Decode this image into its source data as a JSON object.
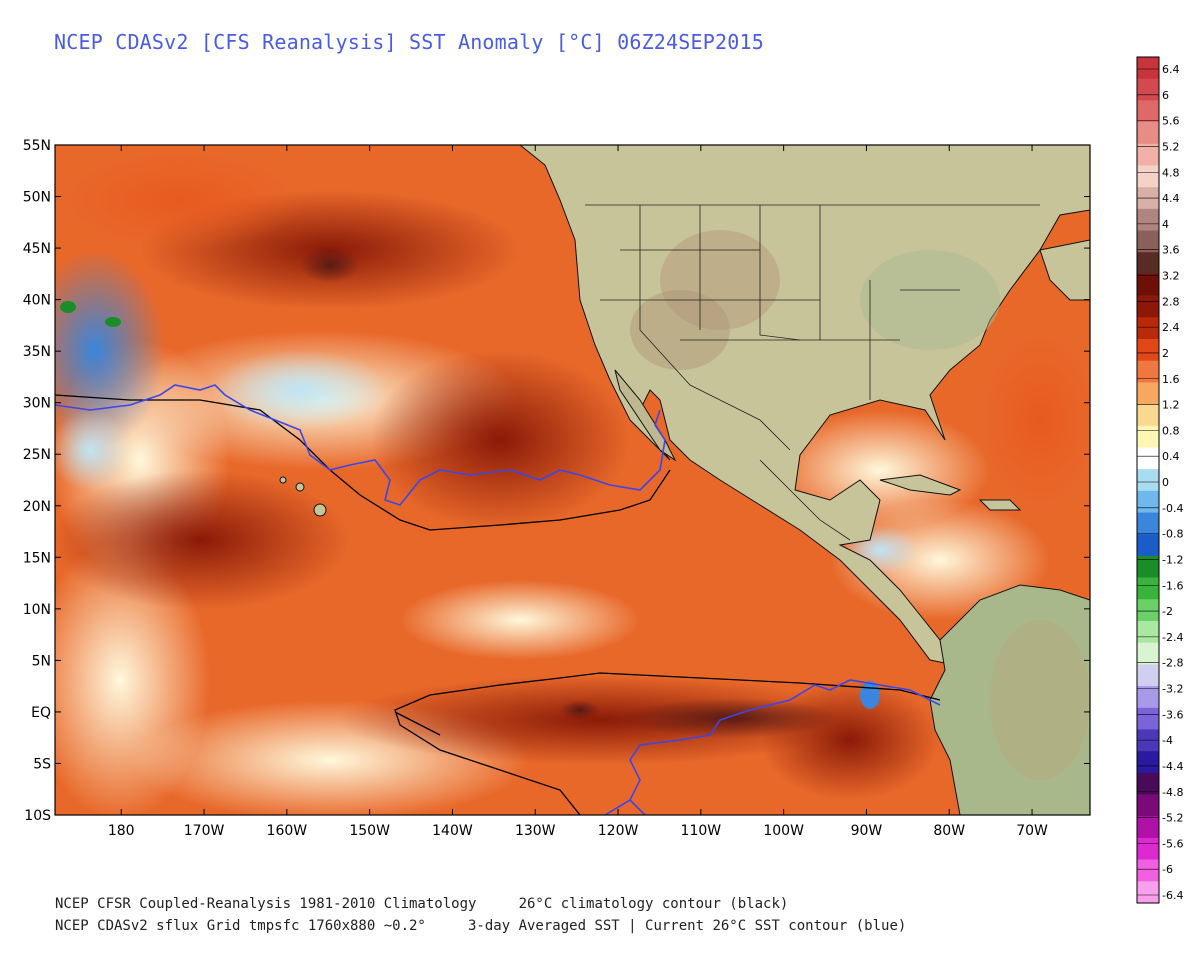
{
  "title": "NCEP CDASv2 [CFS Reanalysis] SST Anomaly [°C] 06Z24SEP2015",
  "map": {
    "lat_labels": [
      "55N",
      "50N",
      "45N",
      "40N",
      "35N",
      "30N",
      "25N",
      "20N",
      "15N",
      "10N",
      "5N",
      "EQ",
      "5S",
      "10S"
    ],
    "lon_labels": [
      "180",
      "170W",
      "160W",
      "150W",
      "140W",
      "130W",
      "120W",
      "110W",
      "100W",
      "90W",
      "80W",
      "70W"
    ],
    "extent": {
      "lon_min": -188,
      "lon_max": -63,
      "lat_min": -10,
      "lat_max": 55
    }
  },
  "colorbar": {
    "labels": [
      "6.4",
      "6",
      "5.6",
      "5.2",
      "4.8",
      "4.4",
      "4",
      "3.6",
      "3.2",
      "2.8",
      "2.4",
      "2",
      "1.6",
      "1.2",
      "0.8",
      "0.4",
      "0",
      "-0.4",
      "-0.8",
      "-1.2",
      "-1.6",
      "-2",
      "-2.4",
      "-2.8",
      "-3.2",
      "-3.6",
      "-4",
      "-4.4",
      "-4.8",
      "-5.2",
      "-5.6",
      "-6",
      "-6.4"
    ],
    "colors": [
      "#c8343c",
      "#d24a4e",
      "#de6a68",
      "#e88c86",
      "#f1b0a8",
      "#f4d2c8",
      "#d8b0a8",
      "#b08480",
      "#8a605c",
      "#5a2a24",
      "#6e1008",
      "#8e1808",
      "#b82a0a",
      "#e04818",
      "#f07840",
      "#f6a860",
      "#fbd890",
      "#fff6b4",
      "#ffffff",
      "#a8dcf0",
      "#70b8ec",
      "#3a86dc",
      "#1c5cc8",
      "#1a8c28",
      "#38b43c",
      "#6cd068",
      "#a8e8a0",
      "#d8f4d0",
      "#d0cff0",
      "#a89ae8",
      "#7a64d8",
      "#4a38b8",
      "#2a1aa0",
      "#4a0a5a",
      "#7a0a78",
      "#b012a8",
      "#dc2ad0",
      "#f060e0",
      "#f8a0ec"
    ]
  },
  "footer": {
    "line1": "NCEP CFSR Coupled-Reanalysis 1981-2010 Climatology     26°C climatology contour (black)",
    "line2": "NCEP CDASv2 sflux Grid tmpsfc 1760x880 ~0.2°     3-day Averaged SST | Current 26°C SST contour (blue)"
  },
  "colors": {
    "title": "#4a5be8",
    "land": "#c8c49a",
    "contour_26c_clim": "#000000",
    "contour_26c_current": "#3c46e8"
  }
}
